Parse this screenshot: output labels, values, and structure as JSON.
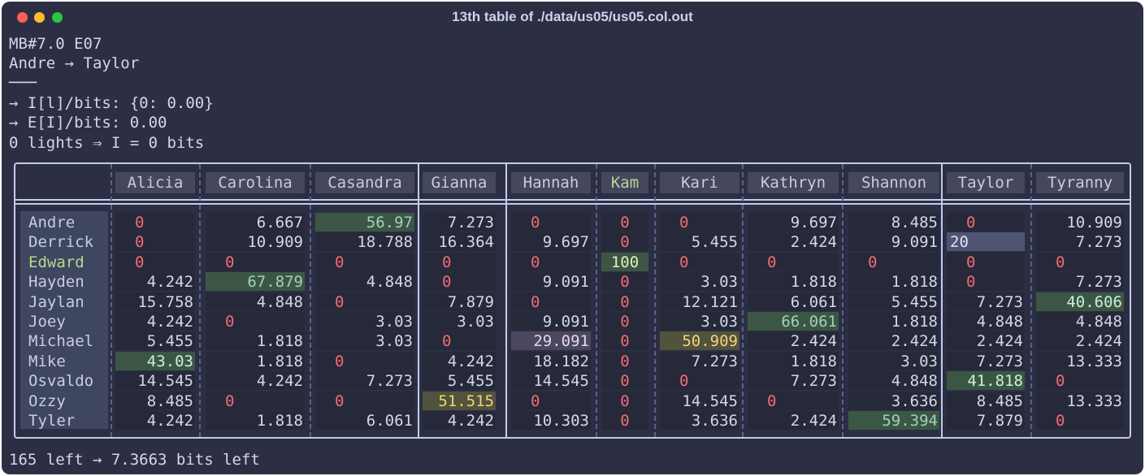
{
  "window": {
    "title": "13th table of ./data/us05/us05.col.out"
  },
  "info": {
    "line1": "MB#7.0 E07",
    "line2": "Andre → Taylor",
    "line3": "───",
    "line4": "→ I[l]/bits: {0: 0.00}",
    "line5": "→ E[I]/bits: 0.00",
    "line6": "0 lights ⇒ I = 0 bits"
  },
  "table": {
    "columns": [
      "Alicia",
      "Carolina",
      "Casandra",
      "Gianna",
      "Hannah",
      "Kam",
      "Kari",
      "Kathryn",
      "Shannon",
      "Taylor",
      "Tyranny"
    ],
    "highlighted_column": "Kam",
    "highlighted_row": "Edward",
    "rows": [
      {
        "name": "Andre",
        "values": [
          "0",
          "6.667",
          "56.97",
          "7.273",
          "0",
          "0",
          "0",
          "9.697",
          "8.485",
          "0",
          "10.909"
        ]
      },
      {
        "name": "Derrick",
        "values": [
          "0",
          "10.909",
          "18.788",
          "16.364",
          "9.697",
          "0",
          "5.455",
          "2.424",
          "9.091",
          "20",
          "7.273"
        ]
      },
      {
        "name": "Edward",
        "values": [
          "0",
          "0",
          "0",
          "0",
          "0",
          "100",
          "0",
          "0",
          "0",
          "0",
          "0"
        ]
      },
      {
        "name": "Hayden",
        "values": [
          "4.242",
          "67.879",
          "4.848",
          "0",
          "9.091",
          "0",
          "3.03",
          "1.818",
          "1.818",
          "0",
          "7.273"
        ]
      },
      {
        "name": "Jaylan",
        "values": [
          "15.758",
          "4.848",
          "0",
          "7.879",
          "0",
          "0",
          "12.121",
          "6.061",
          "5.455",
          "7.273",
          "40.606"
        ]
      },
      {
        "name": "Joey",
        "values": [
          "4.242",
          "0",
          "3.03",
          "3.03",
          "9.091",
          "0",
          "3.03",
          "66.061",
          "1.818",
          "4.848",
          "4.848"
        ]
      },
      {
        "name": "Michael",
        "values": [
          "5.455",
          "1.818",
          "3.03",
          "0",
          "29.091",
          "0",
          "50.909",
          "2.424",
          "2.424",
          "2.424",
          "2.424"
        ]
      },
      {
        "name": "Mike",
        "values": [
          "43.03",
          "1.818",
          "0",
          "4.242",
          "18.182",
          "0",
          "7.273",
          "1.818",
          "3.03",
          "7.273",
          "13.333"
        ]
      },
      {
        "name": "Osvaldo",
        "values": [
          "14.545",
          "4.242",
          "7.273",
          "5.455",
          "14.545",
          "0",
          "0",
          "7.273",
          "4.848",
          "41.818",
          "0"
        ]
      },
      {
        "name": "Ozzy",
        "values": [
          "8.485",
          "0",
          "0",
          "51.515",
          "0",
          "0",
          "14.545",
          "0",
          "3.636",
          "8.485",
          "13.333"
        ]
      },
      {
        "name": "Tyler",
        "values": [
          "4.242",
          "1.818",
          "6.061",
          "4.242",
          "10.303",
          "0",
          "3.636",
          "2.424",
          "59.394",
          "7.879",
          "0"
        ]
      }
    ]
  },
  "footer": {
    "text": "165 left → 7.3663 bits left"
  },
  "colors": {
    "background": "#2c2f44",
    "zero": "#f26b74",
    "highlight_green": "#3c5646",
    "highlight_yellow": "#51533d",
    "accent_name": "#b5d98e"
  }
}
